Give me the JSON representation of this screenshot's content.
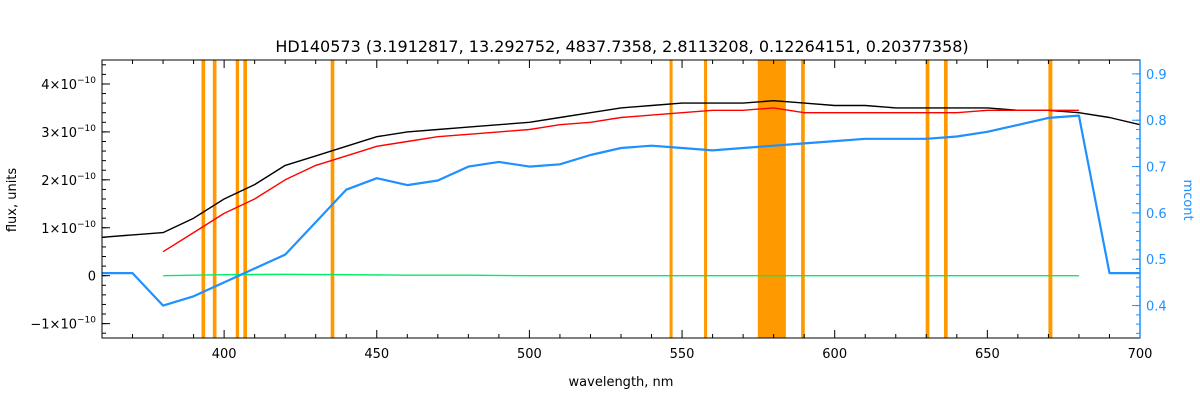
{
  "chart_data": {
    "type": "line",
    "title": "HD140573    (3.1912817, 13.292752, 4837.7358, 2.8113208, 0.12264151, 0.20377358)",
    "xlabel": "wavelength, nm",
    "ylabel": "flux, units",
    "ylabel_right": "mcont",
    "xlim": [
      360,
      700
    ],
    "ylim": [
      -1.3e-10,
      4.5e-10
    ],
    "ylim_right": [
      0.33,
      0.93
    ],
    "x_ticks": [
      400,
      450,
      500,
      550,
      600,
      650,
      700
    ],
    "x_tick_labels": [
      "400",
      "450",
      "500",
      "550",
      "600",
      "650",
      "700"
    ],
    "y_ticks": [
      -1e-10,
      0,
      1e-10,
      2e-10,
      3e-10,
      4e-10
    ],
    "y_tick_labels": [
      "−1×10",
      "0",
      "1×10",
      "2×10",
      "3×10",
      "4×10"
    ],
    "y_tick_exponent": "−10",
    "y_right_ticks": [
      0.4,
      0.5,
      0.6,
      0.7,
      0.8,
      0.9
    ],
    "y_right_tick_labels": [
      "0.4",
      "0.5",
      "0.6",
      "0.7",
      "0.8",
      "0.9"
    ],
    "grid": false,
    "colors": {
      "observed": "#000000",
      "model": "#ff0000",
      "residuals": "#00ee66",
      "continuum": "#1e90ff",
      "masks": "#ff9900",
      "mask_highlight": "#ffff00",
      "right_axis": "#1e90ff"
    },
    "masked_regions": [
      {
        "x0": 392.6,
        "x1": 393.8
      },
      {
        "x0": 396.3,
        "x1": 397.5
      },
      {
        "x0": 403.8,
        "x1": 404.9
      },
      {
        "x0": 406.3,
        "x1": 407.5
      },
      {
        "x0": 434.9,
        "x1": 436.1
      },
      {
        "x0": 545.9,
        "x1": 546.9
      },
      {
        "x0": 557.2,
        "x1": 558.2
      },
      {
        "x0": 574.8,
        "x1": 584.0
      },
      {
        "x0": 589.0,
        "x1": 590.2
      },
      {
        "x0": 629.8,
        "x1": 631.0
      },
      {
        "x0": 635.8,
        "x1": 637.0
      },
      {
        "x0": 670.0,
        "x1": 671.3
      }
    ],
    "series": [
      {
        "key": "observed",
        "x": [
          360,
          370,
          380,
          390,
          400,
          410,
          420,
          430,
          440,
          450,
          460,
          470,
          480,
          490,
          500,
          510,
          520,
          530,
          540,
          550,
          560,
          570,
          580,
          590,
          600,
          610,
          620,
          630,
          640,
          650,
          660,
          670,
          680,
          690,
          700
        ],
        "y": [
          8e-11,
          8.5e-11,
          9e-11,
          1.2e-10,
          1.6e-10,
          1.9e-10,
          2.3e-10,
          2.5e-10,
          2.7e-10,
          2.9e-10,
          3e-10,
          3.05e-10,
          3.1e-10,
          3.15e-10,
          3.2e-10,
          3.3e-10,
          3.4e-10,
          3.5e-10,
          3.55e-10,
          3.6e-10,
          3.6e-10,
          3.6e-10,
          3.65e-10,
          3.6e-10,
          3.55e-10,
          3.55e-10,
          3.5e-10,
          3.5e-10,
          3.5e-10,
          3.5e-10,
          3.45e-10,
          3.45e-10,
          3.4e-10,
          3.3e-10,
          3.15e-10
        ]
      },
      {
        "key": "model",
        "x": [
          380,
          390,
          400,
          410,
          420,
          430,
          440,
          450,
          460,
          470,
          480,
          490,
          500,
          510,
          520,
          530,
          540,
          550,
          560,
          570,
          580,
          590,
          600,
          610,
          620,
          630,
          640,
          650,
          660,
          670,
          680
        ],
        "y": [
          5e-11,
          9e-11,
          1.3e-10,
          1.6e-10,
          2e-10,
          2.3e-10,
          2.5e-10,
          2.7e-10,
          2.8e-10,
          2.9e-10,
          2.95e-10,
          3e-10,
          3.05e-10,
          3.15e-10,
          3.2e-10,
          3.3e-10,
          3.35e-10,
          3.4e-10,
          3.45e-10,
          3.45e-10,
          3.5e-10,
          3.4e-10,
          3.4e-10,
          3.4e-10,
          3.4e-10,
          3.4e-10,
          3.4e-10,
          3.45e-10,
          3.45e-10,
          3.45e-10,
          3.45e-10
        ]
      },
      {
        "key": "residuals",
        "x": [
          380,
          400,
          420,
          440,
          460,
          480,
          500,
          520,
          540,
          560,
          574,
          585,
          600,
          620,
          640,
          660,
          680
        ],
        "y": [
          0,
          2e-12,
          3e-12,
          2e-12,
          1e-12,
          1e-12,
          0,
          0,
          0,
          0,
          0,
          0,
          0,
          0,
          0,
          0,
          0
        ]
      },
      {
        "key": "continuum",
        "axis": "right",
        "x": [
          360,
          370,
          380,
          390,
          400,
          410,
          420,
          430,
          440,
          450,
          460,
          470,
          480,
          490,
          500,
          510,
          520,
          530,
          540,
          550,
          560,
          570,
          580,
          590,
          600,
          610,
          620,
          630,
          640,
          650,
          660,
          670,
          680,
          690,
          700
        ],
        "y": [
          0.47,
          0.47,
          0.4,
          0.42,
          0.45,
          0.48,
          0.51,
          0.58,
          0.65,
          0.675,
          0.66,
          0.67,
          0.7,
          0.71,
          0.7,
          0.705,
          0.725,
          0.74,
          0.745,
          0.74,
          0.735,
          0.74,
          0.745,
          0.75,
          0.755,
          0.76,
          0.76,
          0.76,
          0.765,
          0.775,
          0.79,
          0.805,
          0.81,
          0.47,
          0.47
        ]
      }
    ]
  }
}
